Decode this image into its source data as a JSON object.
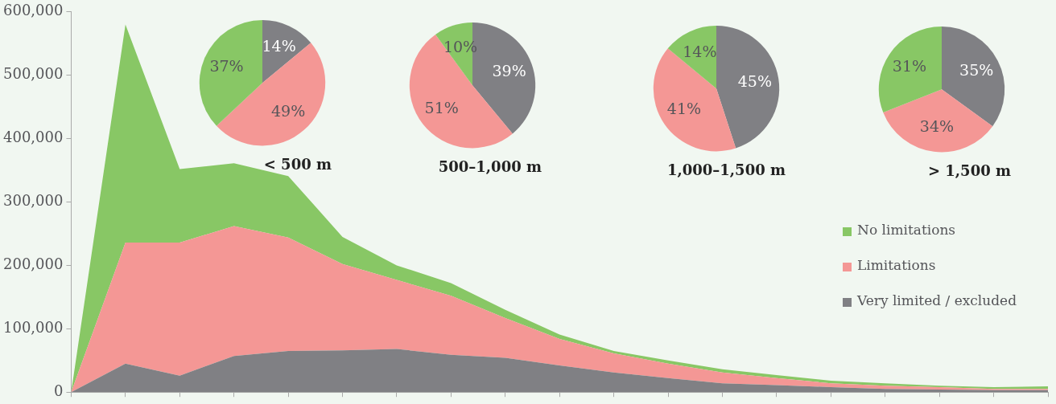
{
  "chart_data": [
    {
      "type": "area",
      "stacked": true,
      "categories": [
        null,
        null,
        null,
        null,
        null,
        null,
        null,
        null,
        null,
        null,
        null,
        null,
        null,
        null,
        null,
        null,
        null,
        null,
        null
      ],
      "series": [
        {
          "name": "Very limited / excluded",
          "color": "#808084",
          "values": [
            0,
            45000,
            26000,
            57000,
            65000,
            66000,
            68000,
            59000,
            54000,
            42000,
            31000,
            22000,
            14000,
            11000,
            8000,
            5000,
            4000,
            3000,
            3000
          ]
        },
        {
          "name": "Limitations",
          "color": "#f49795",
          "values": [
            0,
            191000,
            210000,
            205000,
            179000,
            136000,
            109000,
            93000,
            63000,
            42000,
            30000,
            23000,
            17000,
            11000,
            6000,
            5000,
            4000,
            2000,
            2000
          ]
        },
        {
          "name": "No limitations",
          "color": "#88c765",
          "values": [
            0,
            344000,
            116000,
            99000,
            97000,
            43000,
            23000,
            20000,
            13000,
            7000,
            4000,
            5000,
            5000,
            5000,
            4000,
            4000,
            2000,
            3000,
            4000
          ]
        }
      ],
      "ylim": [
        0,
        600000
      ],
      "yticks": [
        {
          "value": 0,
          "label": "0"
        },
        {
          "value": 100000,
          "label": "100,000"
        },
        {
          "value": 200000,
          "label": "200,000"
        },
        {
          "value": 300000,
          "label": "300,000"
        },
        {
          "value": 400000,
          "label": "400,000"
        },
        {
          "value": 500000,
          "label": "500,000"
        },
        {
          "value": 600000,
          "label": "600,000"
        }
      ],
      "tick_labels": "y",
      "legend": "right"
    },
    {
      "type": "pie",
      "title": "< 500 m",
      "categories": [
        null,
        null,
        null
      ],
      "values": [
        14,
        49,
        37
      ],
      "colors": [
        "#808084",
        "#f49795",
        "#88c765"
      ],
      "value_labels": [
        "14%",
        "49%",
        "37%"
      ]
    },
    {
      "type": "pie",
      "title": "500–1,000 m",
      "categories": [
        null,
        null,
        null
      ],
      "values": [
        39,
        51,
        10
      ],
      "colors": [
        "#808084",
        "#f49795",
        "#88c765"
      ],
      "value_labels": [
        "39%",
        "51%",
        "10%"
      ]
    },
    {
      "type": "pie",
      "title": "1,000–1,500 m",
      "categories": [
        null,
        null,
        null
      ],
      "values": [
        45,
        41,
        14
      ],
      "colors": [
        "#808084",
        "#f49795",
        "#88c765"
      ],
      "value_labels": [
        "45%",
        "41%",
        "14%"
      ]
    },
    {
      "type": "pie",
      "title": "> 1,500 m",
      "categories": [
        null,
        null,
        null
      ],
      "values": [
        35,
        34,
        31
      ],
      "colors": [
        "#808084",
        "#f49795",
        "#88c765"
      ],
      "value_labels": [
        "35%",
        "34%",
        "31%"
      ]
    }
  ]
}
